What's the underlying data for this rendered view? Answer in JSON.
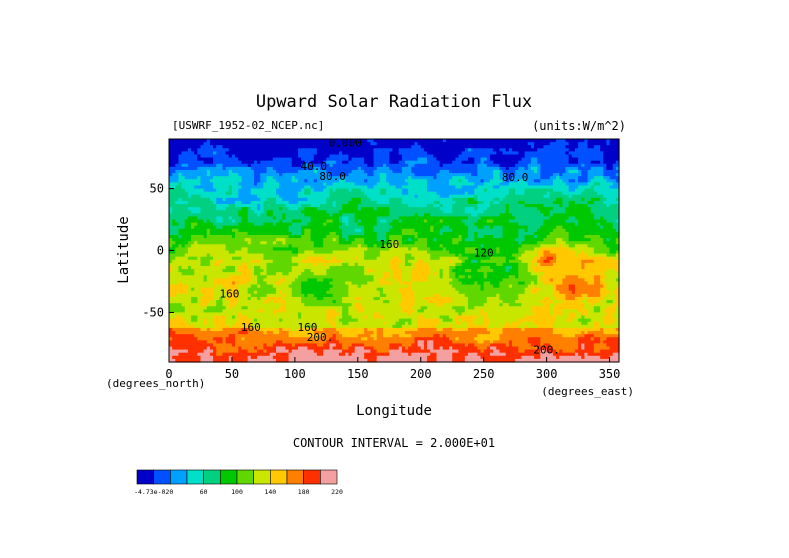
{
  "chart_data": {
    "type": "heatmap",
    "title": "Upward Solar Radiation Flux",
    "source_label": "[USWRF_1952-02_NCEP.nc]",
    "units_label": "(units:W/m^2)",
    "xlabel": "Longitude",
    "ylabel": "Latitude",
    "x_units": "(degrees_east)",
    "y_units": "(degrees_north)",
    "xlim": [
      0,
      357.5
    ],
    "ylim": [
      -90,
      90
    ],
    "x_ticks": [
      {
        "value": 0,
        "label": "0"
      },
      {
        "value": 50,
        "label": "50"
      },
      {
        "value": 100,
        "label": "100"
      },
      {
        "value": 150,
        "label": "150"
      },
      {
        "value": 200,
        "label": "200"
      },
      {
        "value": 250,
        "label": "250"
      },
      {
        "value": 300,
        "label": "300"
      },
      {
        "value": 350,
        "label": "350"
      }
    ],
    "y_ticks": [
      {
        "value": 50,
        "label": "50"
      },
      {
        "value": 0,
        "label": "0"
      },
      {
        "value": -50,
        "label": "-50"
      }
    ],
    "contour_interval_label": "CONTOUR INTERVAL = 2.000E+01",
    "levels": [
      0,
      20,
      40,
      60,
      80,
      100,
      120,
      140,
      160,
      180,
      200,
      220
    ],
    "colors": [
      "#0000c8",
      "#0050ff",
      "#00a0ff",
      "#00e0c8",
      "#00d080",
      "#00c800",
      "#60d800",
      "#c8e600",
      "#ffc800",
      "#ff8000",
      "#ff3000",
      "#f4a0a0"
    ],
    "colorbar_labels": [
      "-4.73e-020",
      "60",
      "100",
      "140",
      "180",
      "220"
    ],
    "contour_labels": [
      {
        "text": "0.000",
        "lon": 140,
        "lat": 84
      },
      {
        "text": "40.0",
        "lon": 115,
        "lat": 65
      },
      {
        "text": "80.0",
        "lon": 130,
        "lat": 57
      },
      {
        "text": "80.0",
        "lon": 275,
        "lat": 56
      },
      {
        "text": "160",
        "lon": 175,
        "lat": 2
      },
      {
        "text": "120",
        "lon": 250,
        "lat": -5
      },
      {
        "text": "160",
        "lon": 48,
        "lat": -38
      },
      {
        "text": "160",
        "lon": 65,
        "lat": -65
      },
      {
        "text": "160",
        "lon": 110,
        "lat": -65
      },
      {
        "text": "200.",
        "lon": 120,
        "lat": -73
      },
      {
        "text": "200.",
        "lon": 300,
        "lat": -83
      }
    ]
  }
}
